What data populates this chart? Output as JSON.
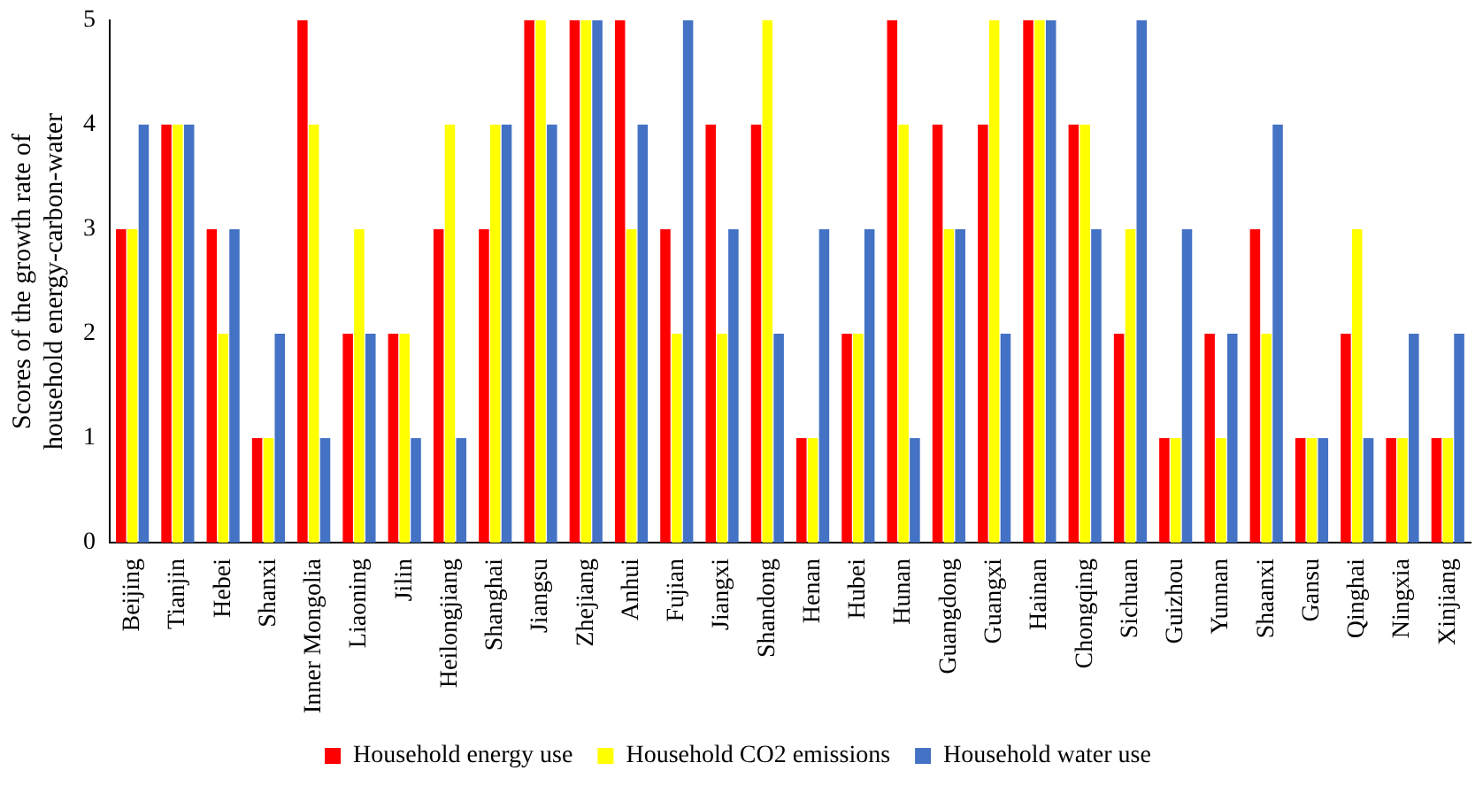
{
  "chart_data": {
    "type": "bar",
    "ylabel": "Scores of the growth rate of household energy-carbon-water",
    "categories": [
      "Beijing",
      "Tianjin",
      "Hebei",
      "Shanxi",
      "Inner Mongolia",
      "Liaoning",
      "Jilin",
      "Heilongjiang",
      "Shanghai",
      "Jiangsu",
      "Zhejiang",
      "Anhui",
      "Fujian",
      "Jiangxi",
      "Shandong",
      "Henan",
      "Hubei",
      "Hunan",
      "Guangdong",
      "Guangxi",
      "Hainan",
      "Chongqing",
      "Sichuan",
      "Guizhou",
      "Yunnan",
      "Shaanxi",
      "Gansu",
      "Qinghai",
      "Ningxia",
      "Xinjiang"
    ],
    "series": [
      {
        "name": "Household energy use",
        "color": "#ff0000",
        "values": [
          3,
          4,
          3,
          1,
          5,
          2,
          2,
          3,
          3,
          5,
          5,
          5,
          3,
          4,
          4,
          1,
          2,
          5,
          4,
          4,
          5,
          4,
          2,
          1,
          2,
          3,
          1,
          2,
          1,
          1
        ]
      },
      {
        "name": "Household CO2 emissions",
        "color": "#ffff00",
        "values": [
          3,
          4,
          2,
          1,
          4,
          3,
          2,
          4,
          4,
          5,
          5,
          3,
          2,
          2,
          5,
          1,
          2,
          4,
          3,
          5,
          5,
          4,
          3,
          1,
          1,
          2,
          1,
          3,
          1,
          1
        ]
      },
      {
        "name": "Household water use",
        "color": "#4472c4",
        "values": [
          4,
          4,
          3,
          2,
          1,
          2,
          1,
          1,
          4,
          4,
          5,
          4,
          5,
          3,
          2,
          3,
          3,
          1,
          3,
          2,
          5,
          3,
          5,
          3,
          2,
          4,
          1,
          1,
          2,
          2
        ]
      }
    ],
    "ylim": [
      0,
      5
    ],
    "yticks": [
      0,
      1,
      2,
      3,
      4,
      5
    ],
    "grid": false,
    "legend": "bottom"
  }
}
